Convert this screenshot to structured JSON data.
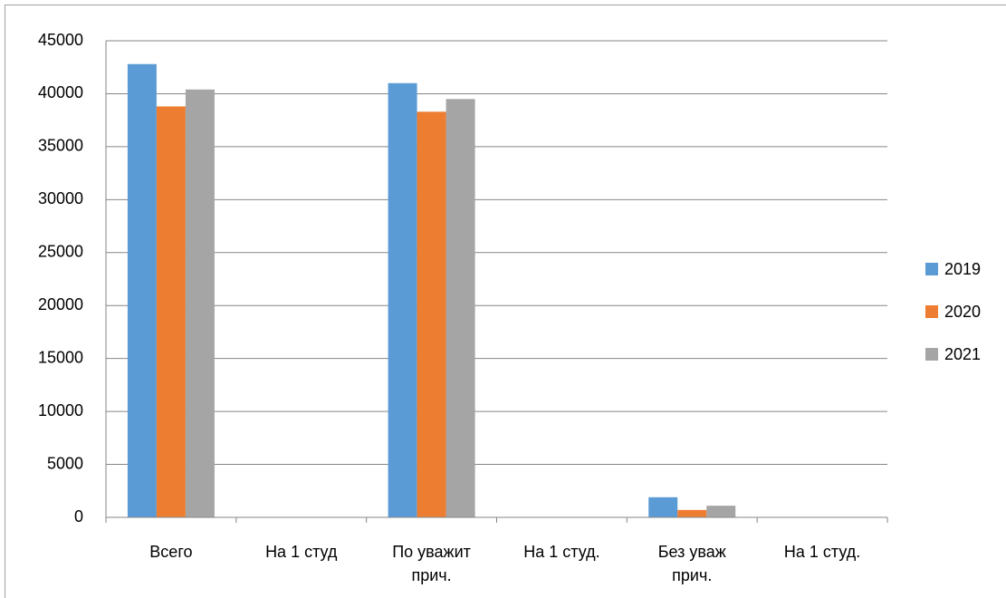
{
  "chart_data": {
    "type": "bar",
    "categories": [
      "Всего",
      "На 1 студ",
      "По уважит прич.",
      "На 1 студ.",
      "Без уваж прич.",
      "На 1 студ."
    ],
    "series": [
      {
        "name": "2019",
        "color": "#5b9bd5",
        "values": [
          42800,
          40,
          41000,
          40,
          1900,
          2
        ]
      },
      {
        "name": "2020",
        "color": "#ed7d31",
        "values": [
          38800,
          40,
          38300,
          40,
          700,
          2
        ]
      },
      {
        "name": "2021",
        "color": "#a5a5a5",
        "values": [
          40400,
          40,
          39500,
          40,
          1100,
          2
        ]
      }
    ],
    "ylim": [
      0,
      45000
    ],
    "yticks": [
      0,
      5000,
      10000,
      15000,
      20000,
      25000,
      30000,
      35000,
      40000,
      45000
    ],
    "grid": true,
    "legend": "right"
  }
}
